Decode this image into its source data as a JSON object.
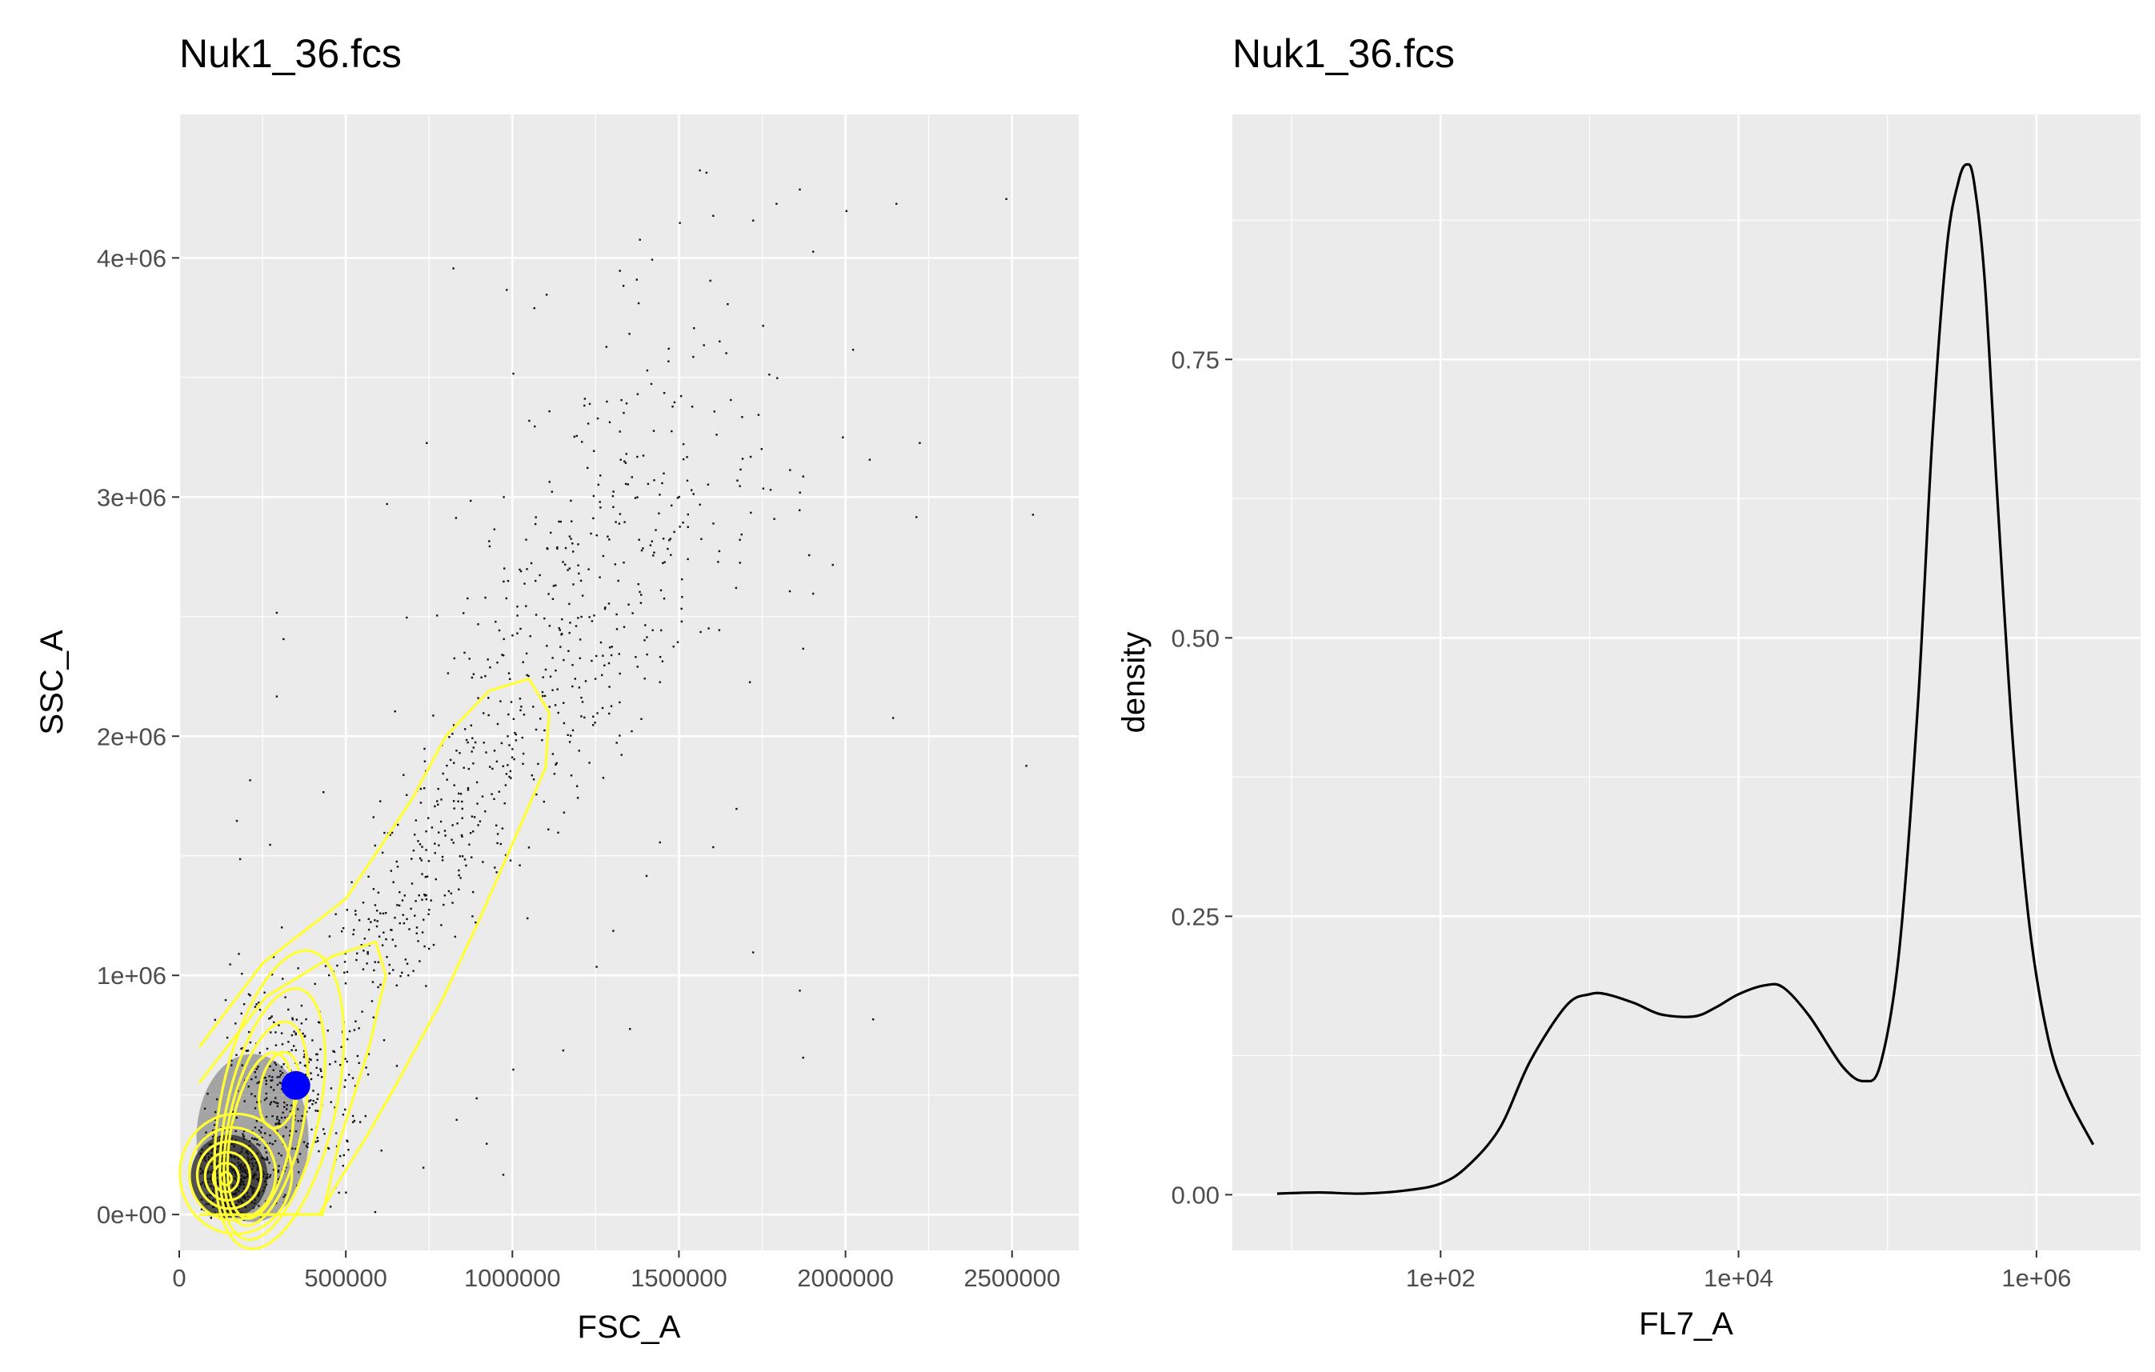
{
  "chart_data": [
    {
      "type": "scatter",
      "title": "Nuk1_36.fcs",
      "xlabel": "FSC_A",
      "ylabel": "SSC_A",
      "xlim": [
        0,
        2700000
      ],
      "ylim": [
        -150000,
        4600000
      ],
      "x_ticks": [
        0,
        500000,
        1000000,
        1500000,
        2000000,
        2500000
      ],
      "x_tick_labels": [
        "0",
        "500000",
        "1000000",
        "1500000",
        "2000000",
        "2500000"
      ],
      "y_ticks": [
        0,
        1000000,
        2000000,
        3000000,
        4000000
      ],
      "y_tick_labels": [
        "0e+00",
        "1e+06",
        "2e+06",
        "3e+06",
        "4e+06"
      ],
      "grid": true,
      "layers": {
        "points": {
          "color": "#000000",
          "description": "raw events"
        },
        "density_contours": {
          "color": "#ffff33"
        },
        "highlight": {
          "x": 350000,
          "y": 540000,
          "color": "#0000ff"
        }
      },
      "outlier_points": [
        [
          1560000,
          4370000
        ],
        [
          1580000,
          4360000
        ],
        [
          2000000,
          4200000
        ],
        [
          2150000,
          4230000
        ],
        [
          2480000,
          4250000
        ],
        [
          1860000,
          4290000
        ],
        [
          1790000,
          4230000
        ],
        [
          1720000,
          4160000
        ],
        [
          1600000,
          4180000
        ],
        [
          1500000,
          4150000
        ],
        [
          1380000,
          4080000
        ],
        [
          1320000,
          3950000
        ],
        [
          1100000,
          3850000
        ],
        [
          980000,
          3870000
        ],
        [
          820000,
          3960000
        ],
        [
          1900000,
          4030000
        ],
        [
          2020000,
          3620000
        ],
        [
          1750000,
          3720000
        ],
        [
          1540000,
          3590000
        ],
        [
          1000000,
          3520000
        ],
        [
          2220000,
          3230000
        ],
        [
          2070000,
          3160000
        ],
        [
          1870000,
          3090000
        ],
        [
          1680000,
          3050000
        ],
        [
          1900000,
          2600000
        ],
        [
          1830000,
          2610000
        ],
        [
          1870000,
          2370000
        ],
        [
          1440000,
          2230000
        ],
        [
          1710000,
          2230000
        ],
        [
          1670000,
          1700000
        ],
        [
          1600000,
          1540000
        ],
        [
          1270000,
          1830000
        ],
        [
          2140000,
          2080000
        ],
        [
          2540000,
          1880000
        ],
        [
          2560000,
          2930000
        ],
        [
          2210000,
          2920000
        ],
        [
          1420000,
          2760000
        ],
        [
          1500000,
          2880000
        ],
        [
          1200000,
          2330000
        ],
        [
          740000,
          3230000
        ],
        [
          290000,
          2520000
        ],
        [
          310000,
          2410000
        ],
        [
          290000,
          2170000
        ],
        [
          210000,
          1820000
        ],
        [
          170000,
          1650000
        ],
        [
          270000,
          1550000
        ],
        [
          430000,
          1770000
        ],
        [
          180000,
          1490000
        ],
        [
          150000,
          1050000
        ],
        [
          210000,
          920000
        ],
        [
          240000,
          860000
        ],
        [
          680000,
          2500000
        ],
        [
          1720000,
          1100000
        ],
        [
          1860000,
          940000
        ],
        [
          1870000,
          660000
        ],
        [
          2080000,
          820000
        ],
        [
          1350000,
          780000
        ],
        [
          1150000,
          690000
        ],
        [
          830000,
          400000
        ],
        [
          920000,
          300000
        ],
        [
          970000,
          170000
        ],
        [
          730000,
          200000
        ],
        [
          890000,
          490000
        ],
        [
          1000000,
          610000
        ],
        [
          1300000,
          1190000
        ],
        [
          1250000,
          1040000
        ],
        [
          1400000,
          1420000
        ],
        [
          1440000,
          1560000
        ]
      ]
    },
    {
      "type": "line",
      "title": "Nuk1_36.fcs",
      "xlabel": "FL7_A",
      "ylabel": "density",
      "x_scale": "log10",
      "xlim": [
        4,
        5000000
      ],
      "ylim": [
        -0.05,
        0.97
      ],
      "x_ticks": [
        100,
        10000,
        1000000
      ],
      "x_tick_labels": [
        "1e+02",
        "1e+04",
        "1e+06"
      ],
      "y_ticks": [
        0,
        0.25,
        0.5,
        0.75
      ],
      "y_tick_labels": [
        "0.00",
        "0.25",
        "0.50",
        "0.75"
      ],
      "grid": true,
      "line_color": "#000000",
      "x": [
        8,
        15,
        30,
        60,
        100,
        150,
        250,
        400,
        700,
        1000,
        1300,
        2000,
        3000,
        5000,
        7000,
        10000,
        15000,
        20000,
        30000,
        50000,
        70000,
        90000,
        120000,
        160000,
        200000,
        250000,
        300000,
        340000,
        380000,
        450000,
        550000,
        700000,
        900000,
        1200000,
        1600000,
        2400000
      ],
      "y": [
        0.001,
        0.002,
        0.001,
        0.004,
        0.01,
        0.025,
        0.06,
        0.12,
        0.17,
        0.18,
        0.18,
        0.172,
        0.162,
        0.16,
        0.168,
        0.18,
        0.188,
        0.186,
        0.16,
        0.115,
        0.102,
        0.118,
        0.22,
        0.44,
        0.68,
        0.85,
        0.91,
        0.925,
        0.91,
        0.82,
        0.62,
        0.4,
        0.24,
        0.14,
        0.09,
        0.045
      ]
    }
  ]
}
